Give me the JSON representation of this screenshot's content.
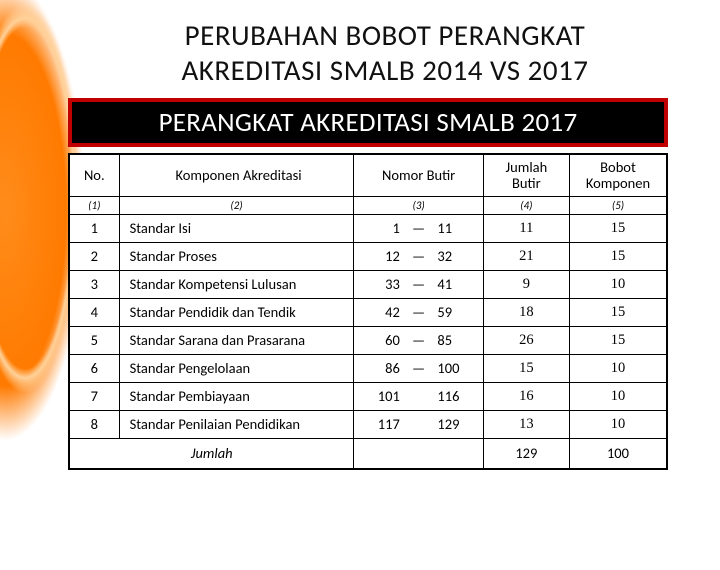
{
  "title_line1": "PERUBAHAN BOBOT PERANGKAT",
  "title_line2": "AKREDITASI SMALB 2014 VS 2017",
  "subtitle": "PERANGKAT AKREDITASI SMALB 2017",
  "headers": {
    "no": "No.",
    "komponen": "Komponen Akreditasi",
    "nomor_butir": "Nomor Butir",
    "jumlah_butir": "Jumlah Butir",
    "bobot": "Bobot Komponen"
  },
  "sub_headers": {
    "c1": "(1)",
    "c2": "(2)",
    "c3": "(3)",
    "c4": "(4)",
    "c5": "(5)"
  },
  "rows": [
    {
      "no": "1",
      "komponen": "Standar Isi",
      "range_a": "1",
      "dash": "—",
      "range_b": "11",
      "jumlah": "11",
      "bobot": "15"
    },
    {
      "no": "2",
      "komponen": "Standar Proses",
      "range_a": "12",
      "dash": "—",
      "range_b": "32",
      "jumlah": "21",
      "bobot": "15"
    },
    {
      "no": "3",
      "komponen": "Standar Kompetensi Lulusan",
      "range_a": "33",
      "dash": "—",
      "range_b": "41",
      "jumlah": "9",
      "bobot": "10"
    },
    {
      "no": "4",
      "komponen": "Standar Pendidik dan Tendik",
      "range_a": "42",
      "dash": "—",
      "range_b": "59",
      "jumlah": "18",
      "bobot": "15"
    },
    {
      "no": "5",
      "komponen": "Standar Sarana dan Prasarana",
      "range_a": "60",
      "dash": "—",
      "range_b": "85",
      "jumlah": "26",
      "bobot": "15"
    },
    {
      "no": "6",
      "komponen": "Standar Pengelolaan",
      "range_a": "86",
      "dash": "—",
      "range_b": "100",
      "jumlah": "15",
      "bobot": "10"
    },
    {
      "no": "7",
      "komponen": "Standar Pembiayaan",
      "range_a": "101",
      "dash": "",
      "range_b": "116",
      "jumlah": "16",
      "bobot": "10"
    },
    {
      "no": "8",
      "komponen": "Standar Penilaian Pendidikan",
      "range_a": "117",
      "dash": "",
      "range_b": "129",
      "jumlah": "13",
      "bobot": "10"
    }
  ],
  "footer": {
    "label": "Jumlah",
    "jumlah": "129",
    "bobot": "100"
  },
  "colors": {
    "accent_orange": "#ff8c1a",
    "subtitle_border": "#c00000",
    "subtitle_bg": "#000000",
    "subtitle_text": "#ffffff",
    "text": "#111111",
    "border": "#000000",
    "bg": "#ffffff"
  }
}
